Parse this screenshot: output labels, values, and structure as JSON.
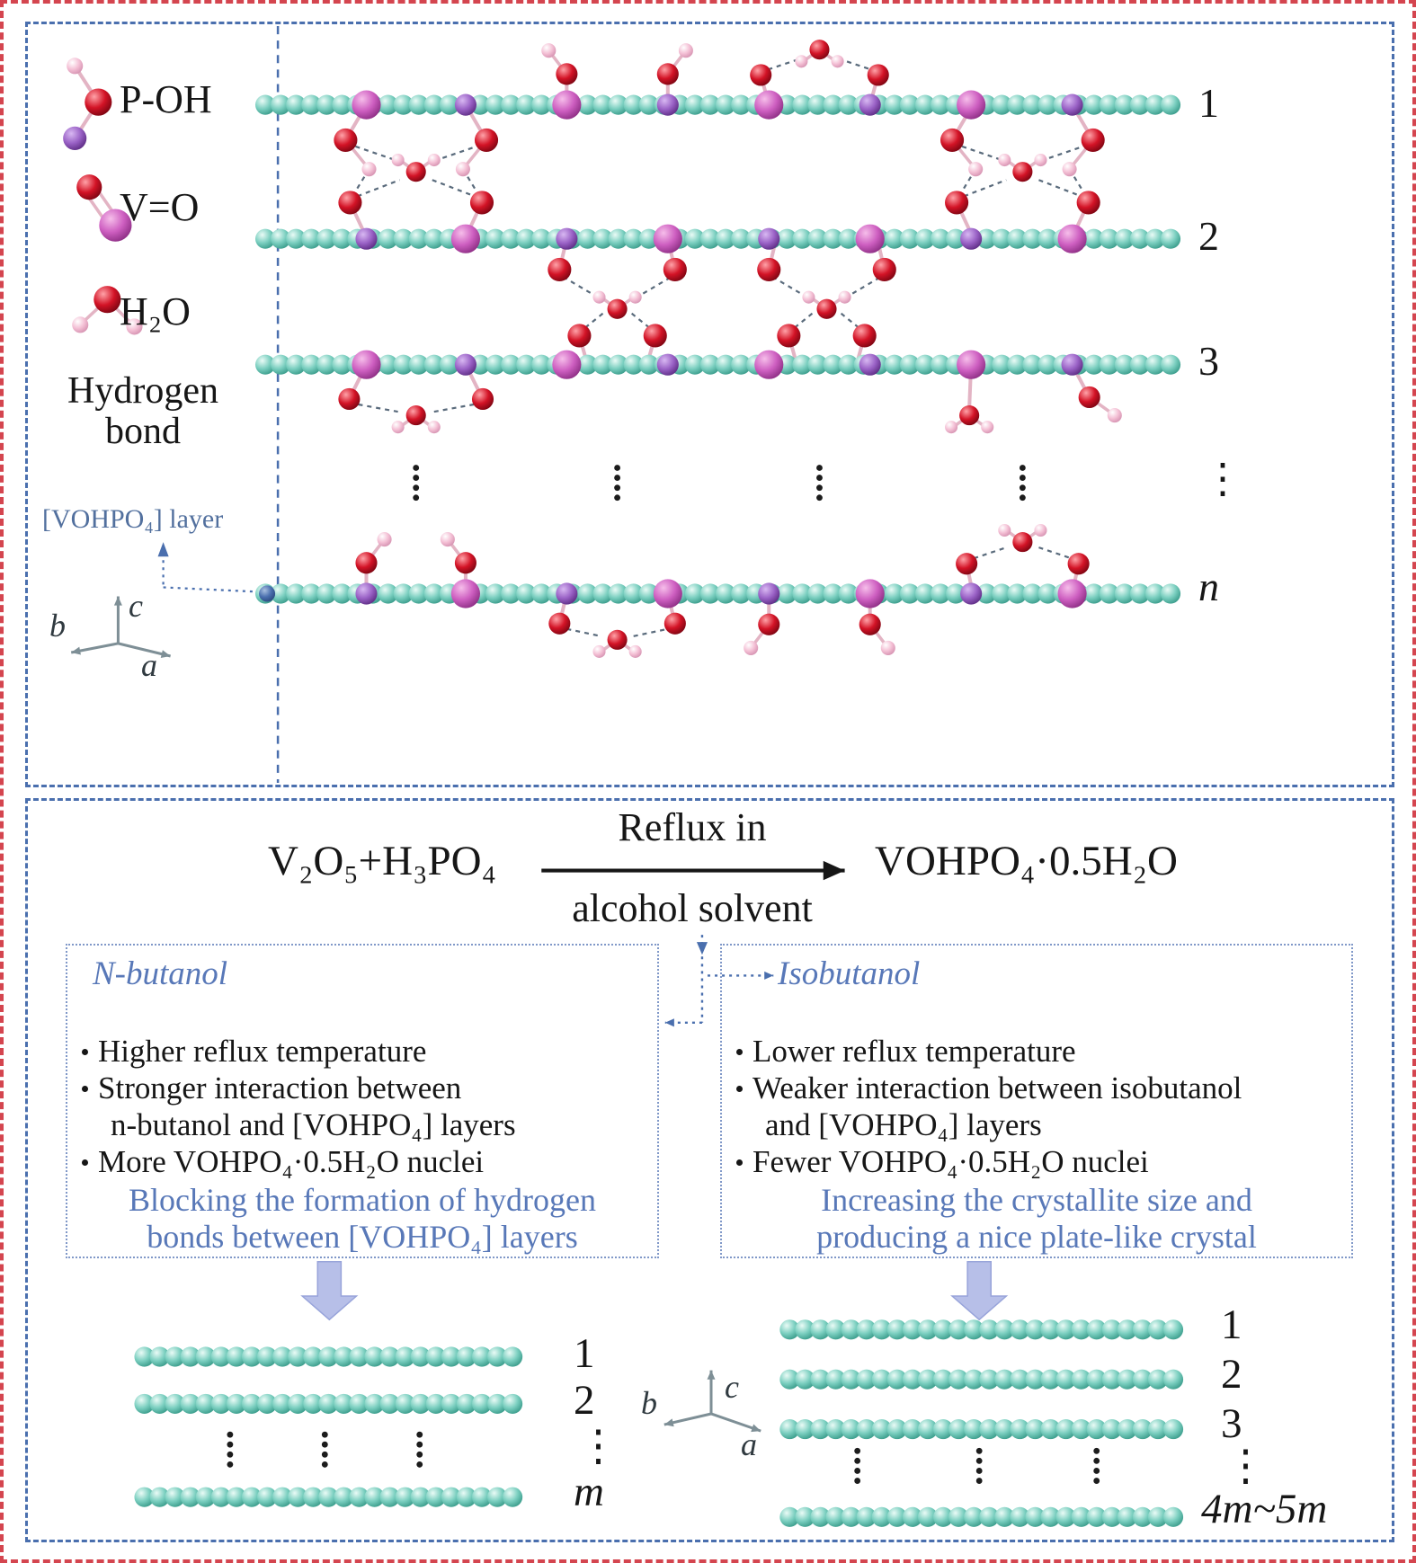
{
  "colors": {
    "outer_border_red": "#d4454f",
    "panel_border_blue": "#4a6fae",
    "accent_text_blue": "#5878b8",
    "layer_teal": "#7bcfc0",
    "oxygen_red": "#d31326",
    "hydrogen_pink": "#f4c0d5",
    "vanadium_magenta": "#ce5fc1",
    "phosphorus_purple": "#9a62c6",
    "text_black": "#161616"
  },
  "top_panel": {
    "legend": {
      "p_oh": "P-OH",
      "v_o": "V=O",
      "h2o": "H₂O",
      "hydrogen_bond_line1": "Hydrogen",
      "hydrogen_bond_line2": "bond",
      "layer_label": "[VOHPO₄] layer",
      "axis_a": "a",
      "axis_b": "b",
      "axis_c": "c"
    },
    "layer_numbers": [
      "1",
      "2",
      "3",
      "⋮",
      "n"
    ]
  },
  "reaction": {
    "reactants": "V₂O₅+H₃PO₄",
    "condition_line1": "Reflux in",
    "condition_line2": "alcohol solvent",
    "product": "VOHPO₄·0.5H₂O"
  },
  "n_butanol_box": {
    "title": "N-butanol",
    "bullet1": "Higher reflux temperature",
    "bullet2_line1": "Stronger interaction between",
    "bullet2_line2": "n-butanol and [VOHPO₄] layers",
    "bullet3": "More VOHPO₄·0.5H₂O nuclei",
    "conclusion_line1": "Blocking the formation of hydrogen",
    "conclusion_line2": "bonds between [VOHPO₄] layers"
  },
  "isobutanol_box": {
    "title": "Isobutanol",
    "bullet1": "Lower reflux temperature",
    "bullet2_line1": "Weaker interaction between isobutanol",
    "bullet2_line2": "and [VOHPO₄] layers",
    "bullet3": "Fewer VOHPO₄·0.5H₂O nuclei",
    "conclusion_line1": "Increasing the crystallite size and",
    "conclusion_line2": "producing a nice plate-like crystal"
  },
  "bottom_axes": {
    "axis_a": "a",
    "axis_b": "b",
    "axis_c": "c"
  },
  "bottom_left_stack": {
    "labels": [
      "1",
      "2",
      "⋮",
      "m"
    ]
  },
  "bottom_right_stack": {
    "labels": [
      "1",
      "2",
      "3",
      "⋮",
      "4m~5m"
    ]
  }
}
